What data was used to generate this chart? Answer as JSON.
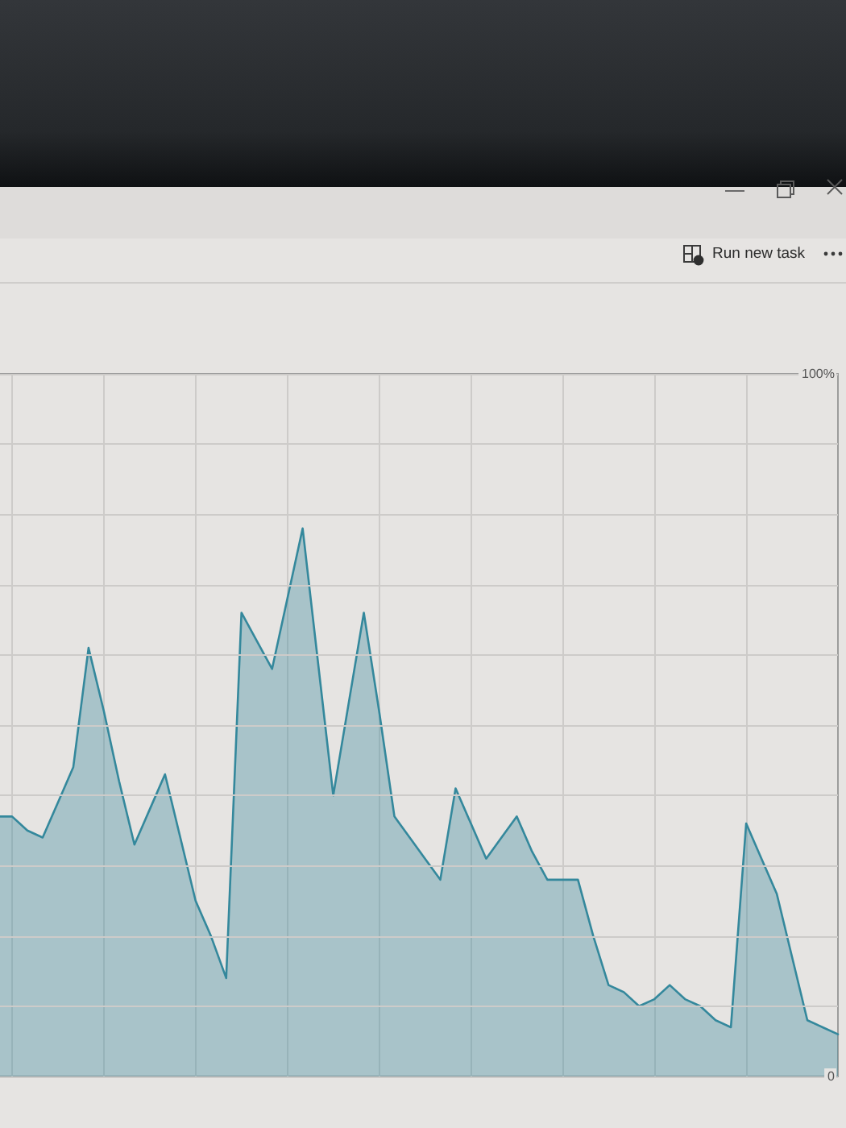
{
  "chart_data": {
    "type": "area",
    "annotations": [
      "Run new task"
    ],
    "categories": [
      null,
      null,
      null,
      null,
      null,
      null,
      null,
      null,
      null,
      null,
      null,
      null,
      null,
      null,
      null,
      null,
      null,
      null,
      null,
      null,
      null,
      null,
      null,
      null,
      null,
      null,
      null,
      null,
      null,
      null,
      null,
      null,
      null,
      null,
      null,
      null,
      null,
      null,
      null,
      null,
      null,
      null,
      null,
      null,
      null,
      null,
      null,
      null,
      null,
      null,
      null,
      null,
      null,
      null,
      null,
      null
    ],
    "values": [
      37,
      37,
      35,
      34,
      39,
      44,
      61,
      52,
      42,
      33,
      38,
      43,
      34,
      25,
      20,
      14,
      66,
      62,
      58,
      68,
      78,
      59,
      40,
      53,
      66,
      52,
      37,
      34,
      31,
      28,
      41,
      36,
      31,
      34,
      37,
      32,
      28,
      28,
      28,
      20,
      13,
      12,
      10,
      11,
      13,
      11,
      10,
      8,
      7,
      36,
      31,
      26,
      17,
      8,
      7,
      6
    ],
    "color": "#34889c",
    "ylim": [
      0,
      100
    ],
    "yticks": [
      0,
      {
        "value": 10,
        "label": null
      },
      {
        "value": 20,
        "label": null
      },
      {
        "value": 30,
        "label": null
      },
      {
        "value": 40,
        "label": null
      },
      {
        "value": 50,
        "label": null
      },
      {
        "value": 60,
        "label": null
      },
      {
        "value": 70,
        "label": null
      },
      {
        "value": 80,
        "label": null
      },
      {
        "value": 90,
        "label": null
      },
      {
        "value": 100,
        "label": "100%"
      }
    ],
    "grid": true,
    "tick_labels": "y"
  }
}
